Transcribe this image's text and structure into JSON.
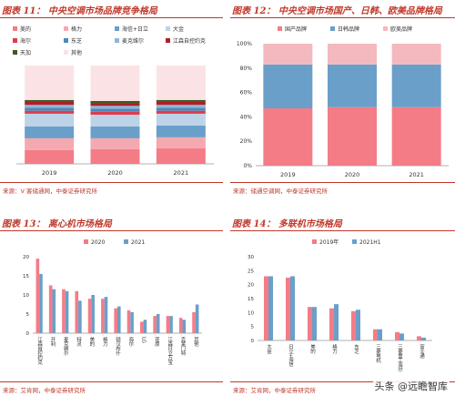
{
  "panels": [
    {
      "title": "图表 11：  中央空调市场品牌竞争格局",
      "source": "来源：V 客储通网，中泰证券研究所"
    },
    {
      "title": "图表 12：  中央空调市场国产、日韩、欧美品牌格局",
      "source": "来源：储通空调网，中泰证券研究所"
    },
    {
      "title": "图表 13：  离心机市场格局",
      "source": "来源：艾肯网，中泰证券研究所"
    },
    {
      "title": "图表 14：  多联机市场格局",
      "source": "来源：艾肯网，中泰证券研究所"
    }
  ],
  "watermark": "头条 @远瞻智库",
  "chart_data": [
    {
      "type": "bar",
      "stacked": true,
      "categories": [
        "2019",
        "2020",
        "2021"
      ],
      "ylim": [
        0,
        100
      ],
      "legend_position": "top",
      "series": [
        {
          "name": "美的",
          "color": "#f47c87",
          "values": [
            14,
            15,
            16
          ]
        },
        {
          "name": "格力",
          "color": "#f4a9b0",
          "values": [
            12,
            11,
            11
          ]
        },
        {
          "name": "海信+日立",
          "color": "#6a9fc9",
          "values": [
            12,
            12,
            12
          ]
        },
        {
          "name": "大金",
          "color": "#bcd3e8",
          "values": [
            13,
            12,
            12
          ]
        },
        {
          "name": "海尔",
          "color": "#e13b4a",
          "values": [
            3,
            3,
            3
          ]
        },
        {
          "name": "东芝",
          "color": "#4d8ab8",
          "values": [
            3,
            3,
            3
          ]
        },
        {
          "name": "麦克维尔",
          "color": "#8fb6d9",
          "values": [
            3,
            3,
            3
          ]
        },
        {
          "name": "江森自控约克",
          "color": "#b01e2a",
          "values": [
            3,
            3,
            3
          ]
        },
        {
          "name": "天加",
          "color": "#3d5a1e",
          "values": [
            2,
            2,
            2
          ]
        },
        {
          "name": "其他",
          "color": "#fbe3e5",
          "values": [
            35,
            36,
            35
          ]
        }
      ]
    },
    {
      "type": "bar",
      "stacked": true,
      "categories": [
        "2019",
        "2020",
        "2021"
      ],
      "ylim": [
        0,
        100
      ],
      "yticks": [
        "0%",
        "20%",
        "40%",
        "60%",
        "80%",
        "100%"
      ],
      "legend_position": "top",
      "series": [
        {
          "name": "国产品牌",
          "color": "#f47c87",
          "values": [
            47,
            48,
            48
          ]
        },
        {
          "name": "日韩品牌",
          "color": "#6a9fc9",
          "values": [
            36,
            35,
            35
          ]
        },
        {
          "name": "欧美品牌",
          "color": "#f4b8bf",
          "values": [
            17,
            17,
            17
          ]
        }
      ]
    },
    {
      "type": "bar",
      "categories": [
        "江森自控约克",
        "开利",
        "麦克维尔",
        "特灵",
        "美的",
        "格力",
        "顿汉布什",
        "海尔",
        "LG",
        "荏原",
        "江森日立万宝",
        "克莱门特",
        "其他"
      ],
      "ylim": [
        0,
        20
      ],
      "ytick_values": [
        0,
        5,
        10,
        15,
        20
      ],
      "legend_position": "top",
      "series": [
        {
          "name": "2020",
          "color": "#f47c87",
          "values": [
            19.5,
            12.5,
            11.5,
            11.0,
            9.0,
            9.0,
            6.5,
            6.0,
            3.0,
            4.5,
            4.5,
            4.0,
            5.5
          ]
        },
        {
          "name": "2021",
          "color": "#6a9fc9",
          "values": [
            15.5,
            11.5,
            11.0,
            8.5,
            10.0,
            9.5,
            7.0,
            5.5,
            3.5,
            5.0,
            4.5,
            3.5,
            7.5
          ]
        }
      ]
    },
    {
      "type": "bar",
      "categories": [
        "大金",
        "日立+海信",
        "美的",
        "格力",
        "东芝",
        "三菱电机",
        "三菱重工海尔",
        "富士通"
      ],
      "ylim": [
        0,
        30
      ],
      "ytick_values": [
        0,
        5,
        10,
        15,
        20,
        25,
        30
      ],
      "legend_position": "top",
      "series": [
        {
          "name": "2019年",
          "color": "#f47c87",
          "values": [
            23,
            22.5,
            12,
            11.5,
            10.5,
            4.0,
            3.0,
            1.5
          ]
        },
        {
          "name": "2021H1",
          "color": "#6a9fc9",
          "values": [
            23,
            23,
            12,
            13,
            11,
            4.0,
            2.5,
            1.0
          ]
        }
      ]
    }
  ]
}
